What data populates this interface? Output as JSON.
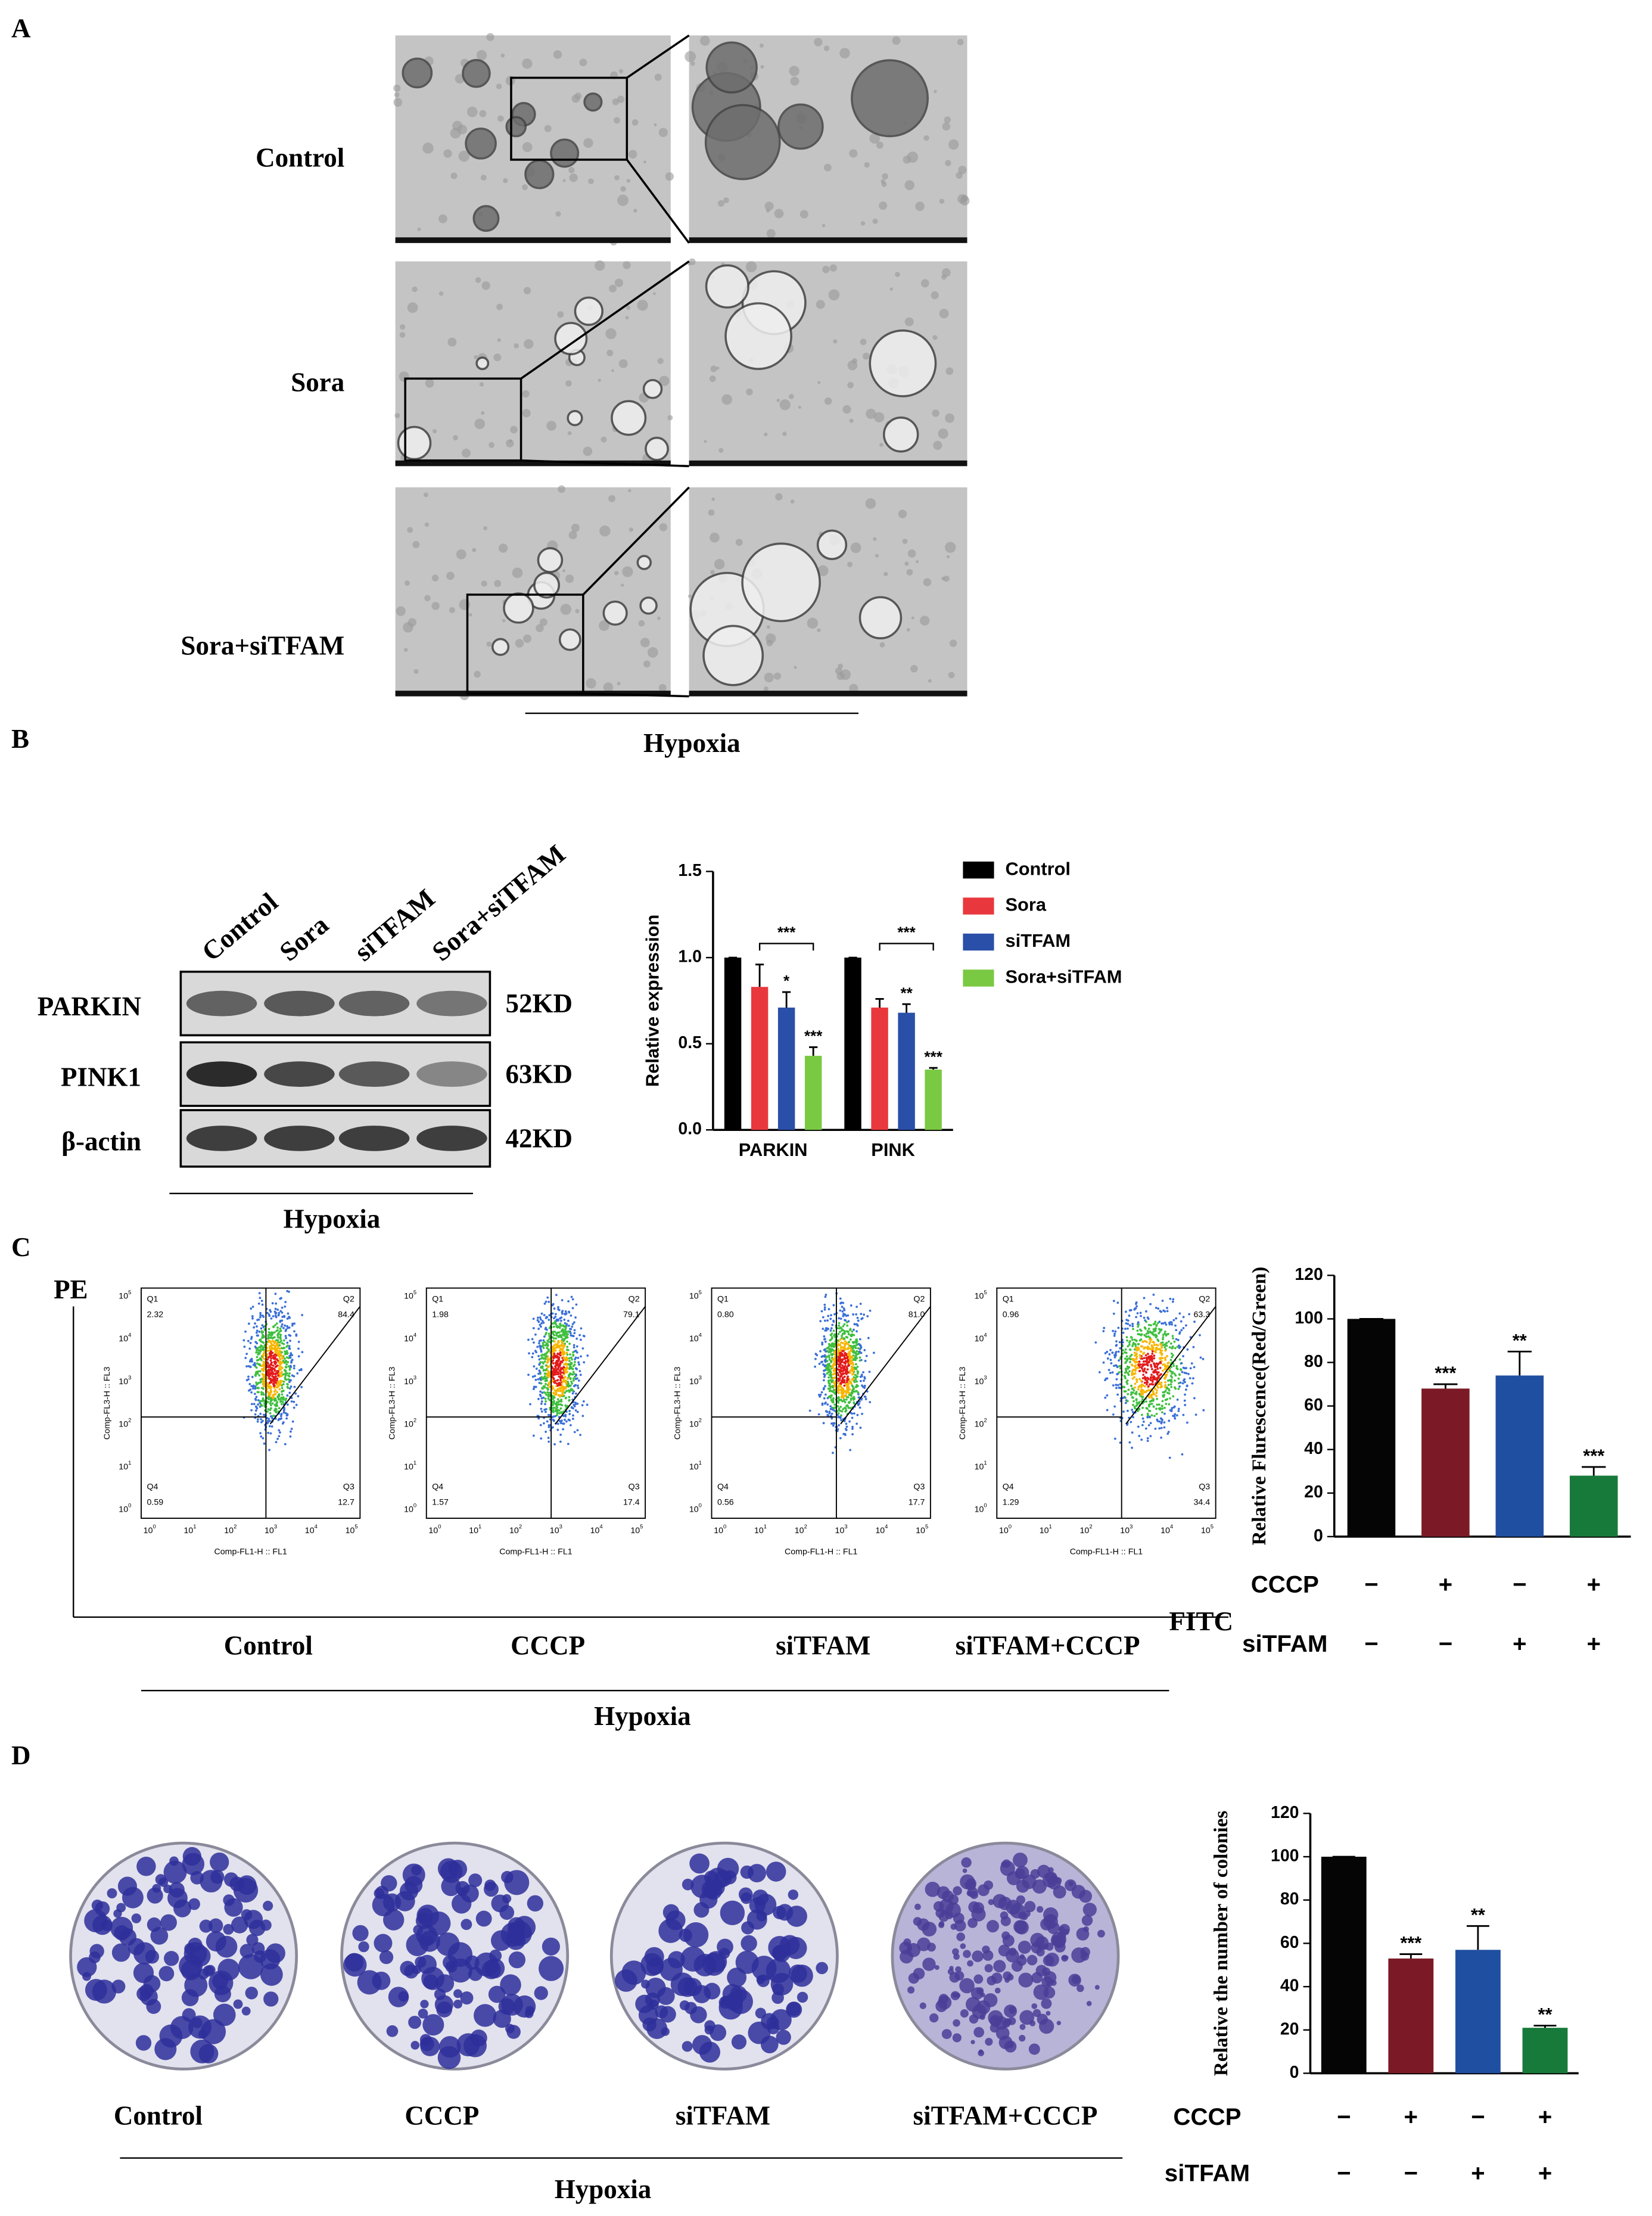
{
  "panel_a": {
    "label": "A",
    "rows": [
      "Control",
      "Sora",
      "Sora+siTFAM"
    ],
    "condition": "Hypoxia"
  },
  "panel_b": {
    "label": "B",
    "lanes": [
      "Control",
      "Sora",
      "siTFAM",
      "Sora+siTFAM"
    ],
    "proteins": [
      {
        "name": "PARKIN",
        "size": "52KD"
      },
      {
        "name": "PINK1",
        "size": "63KD"
      },
      {
        "name": "β-actin",
        "size": "42KD"
      }
    ],
    "condition": "Hypoxia"
  },
  "panel_c": {
    "label": "C",
    "y_axis": "PE",
    "x_axis": "FITC",
    "groups": [
      "Control",
      "CCCP",
      "siTFAM",
      "siTFAM+CCCP"
    ],
    "condition": "Hypoxia",
    "quadrants": [
      "Q1",
      "Q2",
      "Q3",
      "Q4"
    ],
    "flow_xlabel": "Comp-FL1-H :: FL1",
    "flow_ylabel": "Comp-FL3-H :: FL3",
    "flow_ticks": [
      {
        "base": "10",
        "exp": "0"
      },
      {
        "base": "10",
        "exp": "1"
      },
      {
        "base": "10",
        "exp": "2"
      },
      {
        "base": "10",
        "exp": "3"
      },
      {
        "base": "10",
        "exp": "4"
      },
      {
        "base": "10",
        "exp": "5"
      }
    ],
    "flow_plots": [
      {
        "q1": "2.32",
        "q2": "84.4",
        "q3": "12.7",
        "q4": "0.59"
      },
      {
        "q1": "1.98",
        "q2": "79.1",
        "q3": "17.4",
        "q4": "1.57"
      },
      {
        "q1": "0.80",
        "q2": "81.0",
        "q3": "17.7",
        "q4": "0.56"
      },
      {
        "q1": "0.96",
        "q2": "63.3",
        "q3": "34.4",
        "q4": "1.29"
      }
    ]
  },
  "panel_d": {
    "label": "D",
    "groups": [
      "Control",
      "CCCP",
      "siTFAM",
      "siTFAM+CCCP"
    ],
    "condition": "Hypoxia"
  },
  "chart_data": [
    {
      "type": "bar",
      "ylabel": "Relative expression",
      "categories": [
        "PARKIN",
        "PINK"
      ],
      "series": [
        {
          "name": "Control",
          "color": "#000000",
          "values": [
            1.0,
            1.0
          ],
          "errors": [
            0,
            0
          ],
          "annotations": [
            null,
            null
          ]
        },
        {
          "name": "Sora",
          "color": "#e8383d",
          "values": [
            0.83,
            0.71
          ],
          "errors": [
            0.13,
            0.05
          ],
          "annotations": [
            null,
            null
          ]
        },
        {
          "name": "siTFAM",
          "color": "#2a4fa8",
          "values": [
            0.71,
            0.68
          ],
          "errors": [
            0.09,
            0.05
          ],
          "annotations": [
            "*",
            "**"
          ]
        },
        {
          "name": "Sora+siTFAM",
          "color": "#7ac943",
          "values": [
            0.43,
            0.35
          ],
          "errors": [
            0.05,
            0.01
          ],
          "annotations": [
            "***",
            "***"
          ]
        }
      ],
      "bracket_labels": [
        "***",
        "***"
      ],
      "ylim": [
        0,
        1.5
      ],
      "yticks": [
        {
          "value": 0,
          "label": "0.0"
        },
        {
          "value": 0.5,
          "label": "0.5"
        },
        {
          "value": 1,
          "label": "1.0"
        },
        {
          "value": 1.5,
          "label": "1.5"
        }
      ]
    },
    {
      "type": "bar",
      "ylabel": "Relative Flurescence(Red/Green)",
      "categories": [
        null,
        null,
        null,
        null
      ],
      "values": [
        100,
        68,
        74,
        28
      ],
      "errors": [
        0,
        2,
        11,
        4
      ],
      "colors": [
        "#050505",
        "#7b1a26",
        "#1f4fa0",
        "#187a3a"
      ],
      "annotations": [
        null,
        "***",
        "**",
        "***"
      ],
      "treatments": [
        {
          "name": "CCCP",
          "signs": [
            "−",
            "+",
            "−",
            "+"
          ]
        },
        {
          "name": "siTFAM",
          "signs": [
            "−",
            "−",
            "+",
            "+"
          ]
        }
      ],
      "ylim": [
        0,
        120
      ],
      "yticks": [
        0,
        20,
        40,
        60,
        80,
        100,
        120
      ]
    },
    {
      "type": "bar",
      "ylabel": "Relative the number of colonies",
      "categories": [
        null,
        null,
        null,
        null
      ],
      "values": [
        100,
        53,
        57,
        21
      ],
      "errors": [
        0,
        2,
        11,
        1
      ],
      "colors": [
        "#050505",
        "#7b1a26",
        "#1f4fa0",
        "#187a3a"
      ],
      "annotations": [
        null,
        "***",
        "**",
        "**"
      ],
      "treatments": [
        {
          "name": "CCCP",
          "signs": [
            "−",
            "+",
            "−",
            "+"
          ]
        },
        {
          "name": "siTFAM",
          "signs": [
            "−",
            "−",
            "+",
            "+"
          ]
        }
      ],
      "ylim": [
        0,
        120
      ],
      "yticks": [
        0,
        20,
        40,
        60,
        80,
        100,
        120
      ]
    }
  ]
}
